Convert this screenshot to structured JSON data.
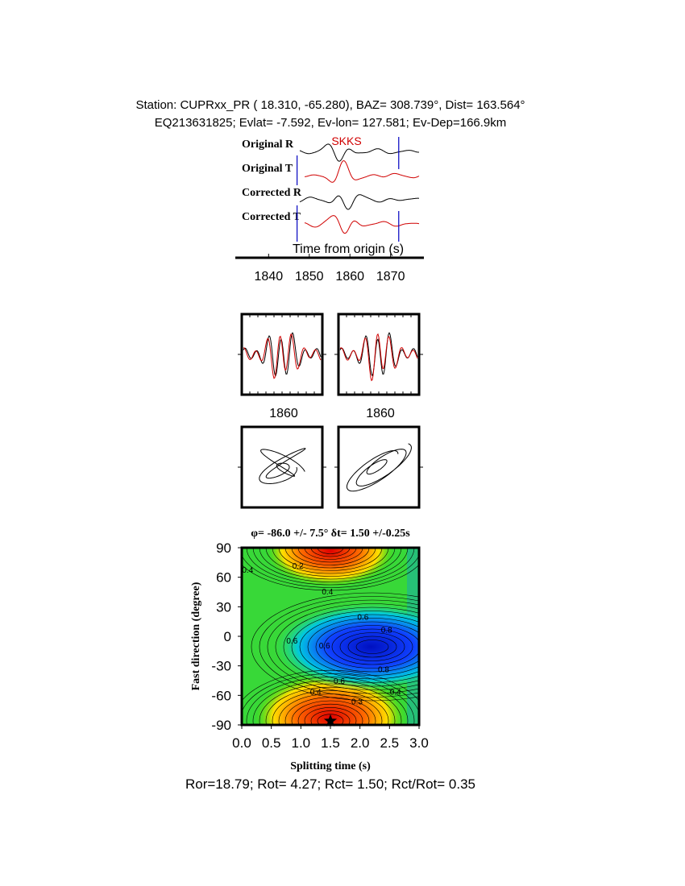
{
  "header": {
    "station": "Station: CUPRxx_PR (  18.310,  -65.280), BAZ=  308.739°, Dist=  163.564°",
    "event": "EQ213631825; Evlat=  -7.592, Ev-lon= 127.581; Ev-Dep=166.9km"
  },
  "traces": {
    "phase": "SKKS",
    "labels": [
      "Original R",
      "Original T",
      "Corrected R",
      "Corrected T"
    ],
    "xlabel": "Time from origin (s)",
    "xlim": [
      1833,
      1877
    ],
    "xticks": [
      1840,
      1850,
      1860,
      1870
    ],
    "window": [
      1847,
      1872
    ]
  },
  "waveform_panels": {
    "xlim": [
      1847,
      1872
    ],
    "xticks": [
      1860
    ]
  },
  "grid_search": {
    "title": "φ= -86.0 +/- 7.5° δt= 1.50 +/-0.25s",
    "xlabel": "Splitting time (s)",
    "ylabel": "Fast direction (degree)",
    "xlim": [
      0,
      3
    ],
    "ylim": [
      -90,
      90
    ],
    "xticks": [
      {
        "value": 0,
        "label": "0.0"
      },
      {
        "value": 0.5,
        "label": "0.5"
      },
      {
        "value": 1,
        "label": "1.0"
      },
      {
        "value": 1.5,
        "label": "1.5"
      },
      {
        "value": 2,
        "label": "2.0"
      },
      {
        "value": 2.5,
        "label": "2.5"
      },
      {
        "value": 3,
        "label": "3.0"
      }
    ],
    "yticks": [
      -90,
      -60,
      -30,
      0,
      30,
      60,
      90
    ],
    "best": {
      "x": 1.5,
      "y": -86
    },
    "contour_labels": [
      {
        "value": 0.4,
        "x": 0.1,
        "y": 68
      },
      {
        "value": 0.2,
        "x": 0.95,
        "y": 72
      },
      {
        "value": 0.4,
        "x": 1.45,
        "y": 46
      },
      {
        "value": 0.6,
        "x": 2.05,
        "y": 20
      },
      {
        "value": 0.8,
        "x": 2.45,
        "y": 7
      },
      {
        "value": 0.6,
        "x": 0.85,
        "y": -4
      },
      {
        "value": 0.6,
        "x": 1.4,
        "y": -9
      },
      {
        "value": 0.8,
        "x": 2.4,
        "y": -33
      },
      {
        "value": 0.6,
        "x": 1.65,
        "y": -45
      },
      {
        "value": 0.4,
        "x": 1.25,
        "y": -56
      },
      {
        "value": 0.3,
        "x": 1.95,
        "y": -66
      },
      {
        "value": 0.4,
        "x": 2.6,
        "y": -56
      }
    ]
  },
  "footer": "Ror=18.79; Rot= 4.27; Rct= 1.50; Rct/Rot= 0.35"
}
